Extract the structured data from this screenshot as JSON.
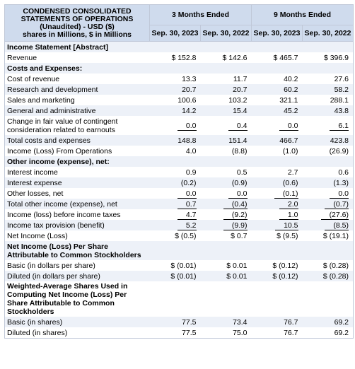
{
  "header": {
    "title": "CONDENSED CONSOLIDATED STATEMENTS OF OPERATIONS (Unaudited) - USD ($) shares in Millions, $ in Millions",
    "title_lines": [
      "CONDENSED CONSOLIDATED",
      "STATEMENTS OF OPERATIONS",
      "(Unaudited) - USD ($)",
      "shares in Millions, $ in Millions"
    ],
    "group_3m": "3 Months Ended",
    "group_9m": "9 Months Ended",
    "periods": [
      "Sep. 30, 2023",
      "Sep. 30, 2022",
      "Sep. 30, 2023",
      "Sep. 30, 2022"
    ]
  },
  "rows": [
    {
      "label": "Income Statement [Abstract]",
      "section": true,
      "values": [
        "",
        "",
        "",
        ""
      ]
    },
    {
      "label": "Revenue",
      "values": [
        "$ 152.8",
        "$ 142.6",
        "$ 465.7",
        "$ 396.9"
      ]
    },
    {
      "label": "Costs and Expenses:",
      "section": true,
      "values": [
        "",
        "",
        "",
        ""
      ]
    },
    {
      "label": "Cost of revenue",
      "values": [
        "13.3",
        "11.7",
        "40.2",
        "27.6"
      ]
    },
    {
      "label": "Research and development",
      "values": [
        "20.7",
        "20.7",
        "60.2",
        "58.2"
      ]
    },
    {
      "label": "Sales and marketing",
      "values": [
        "100.6",
        "103.2",
        "321.1",
        "288.1"
      ]
    },
    {
      "label": "General and administrative",
      "values": [
        "14.2",
        "15.4",
        "45.2",
        "43.8"
      ]
    },
    {
      "label": "Change in fair value of contingent consideration related to earnouts",
      "values": [
        "0.0",
        "0.4",
        "0.0",
        "6.1"
      ],
      "underline": true
    },
    {
      "label": "Total costs and expenses",
      "values": [
        "148.8",
        "151.4",
        "466.7",
        "423.8"
      ]
    },
    {
      "label": "Income (Loss) From Operations",
      "values": [
        "4.0",
        "(8.8)",
        "(1.0)",
        "(26.9)"
      ]
    },
    {
      "label": "Other income (expense), net:",
      "section": true,
      "values": [
        "",
        "",
        "",
        ""
      ]
    },
    {
      "label": "Interest income",
      "values": [
        "0.9",
        "0.5",
        "2.7",
        "0.6"
      ]
    },
    {
      "label": "Interest expense",
      "values": [
        "(0.2)",
        "(0.9)",
        "(0.6)",
        "(1.3)"
      ]
    },
    {
      "label": "Other losses, net",
      "values": [
        "0.0",
        "0.0",
        "(0.1)",
        "0.0"
      ],
      "underline": true
    },
    {
      "label": "Total other income (expense), net",
      "values": [
        "0.7",
        "(0.4)",
        "2.0",
        "(0.7)"
      ],
      "underline": true
    },
    {
      "label": "Income (loss) before income taxes",
      "values": [
        "4.7",
        "(9.2)",
        "1.0",
        "(27.6)"
      ],
      "underline": true
    },
    {
      "label": "Income tax provision (benefit)",
      "values": [
        "5.2",
        "(9.9)",
        "10.5",
        "(8.5)"
      ],
      "underline": true
    },
    {
      "label": "Net Income (Loss)",
      "values": [
        "$ (0.5)",
        "$ 0.7",
        "$ (9.5)",
        "$ (19.1)"
      ]
    },
    {
      "label": "Net Income (Loss) Per Share Attributable to Common Stockholders",
      "section": true,
      "values": [
        "",
        "",
        "",
        ""
      ]
    },
    {
      "label": "Basic (in dollars per share)",
      "values": [
        "$ (0.01)",
        "$ 0.01",
        "$ (0.12)",
        "$ (0.28)"
      ]
    },
    {
      "label": "Diluted (in dollars per share)",
      "values": [
        "$ (0.01)",
        "$ 0.01",
        "$ (0.12)",
        "$ (0.28)"
      ]
    },
    {
      "label": "Weighted-Average Shares Used in Computing Net Income (Loss) Per Share Attributable to Common Stockholders",
      "section": true,
      "values": [
        "",
        "",
        "",
        ""
      ]
    },
    {
      "label": "Basic (in shares)",
      "values": [
        "77.5",
        "73.4",
        "76.7",
        "69.2"
      ]
    },
    {
      "label": "Diluted (in shares)",
      "values": [
        "77.5",
        "75.0",
        "76.7",
        "69.2"
      ]
    }
  ]
}
